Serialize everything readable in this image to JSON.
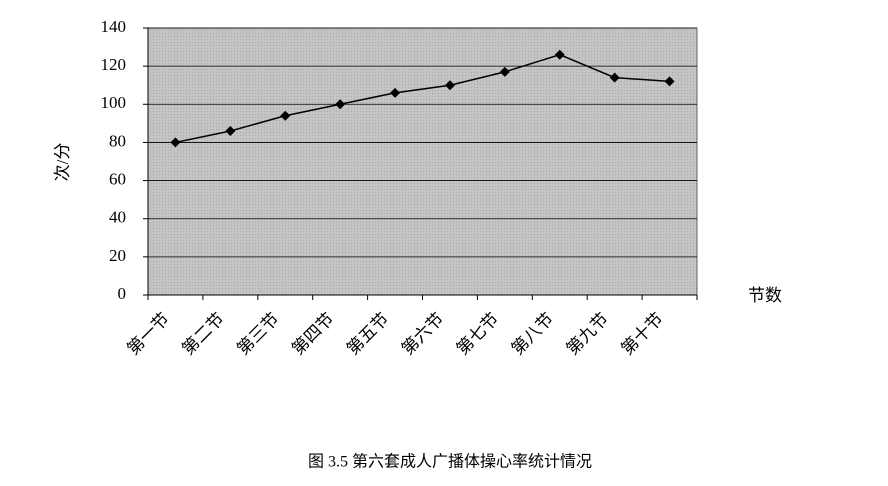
{
  "chart_data": {
    "type": "line",
    "caption": "图 3.5  第六套成人广播体操心率统计情况",
    "x_label": "节数",
    "y_label": "次/分",
    "categories": [
      "第一节",
      "第二节",
      "第三节",
      "第四节",
      "第五节",
      "第六节",
      "第七节",
      "第八节",
      "第九节",
      "第十节"
    ],
    "values": [
      80,
      86,
      94,
      100,
      106,
      110,
      117,
      126,
      114,
      112
    ],
    "color": "#000000",
    "ylim": [
      0,
      140
    ],
    "yticks": [
      0,
      20,
      40,
      60,
      80,
      100,
      120,
      140
    ],
    "grid": true
  }
}
